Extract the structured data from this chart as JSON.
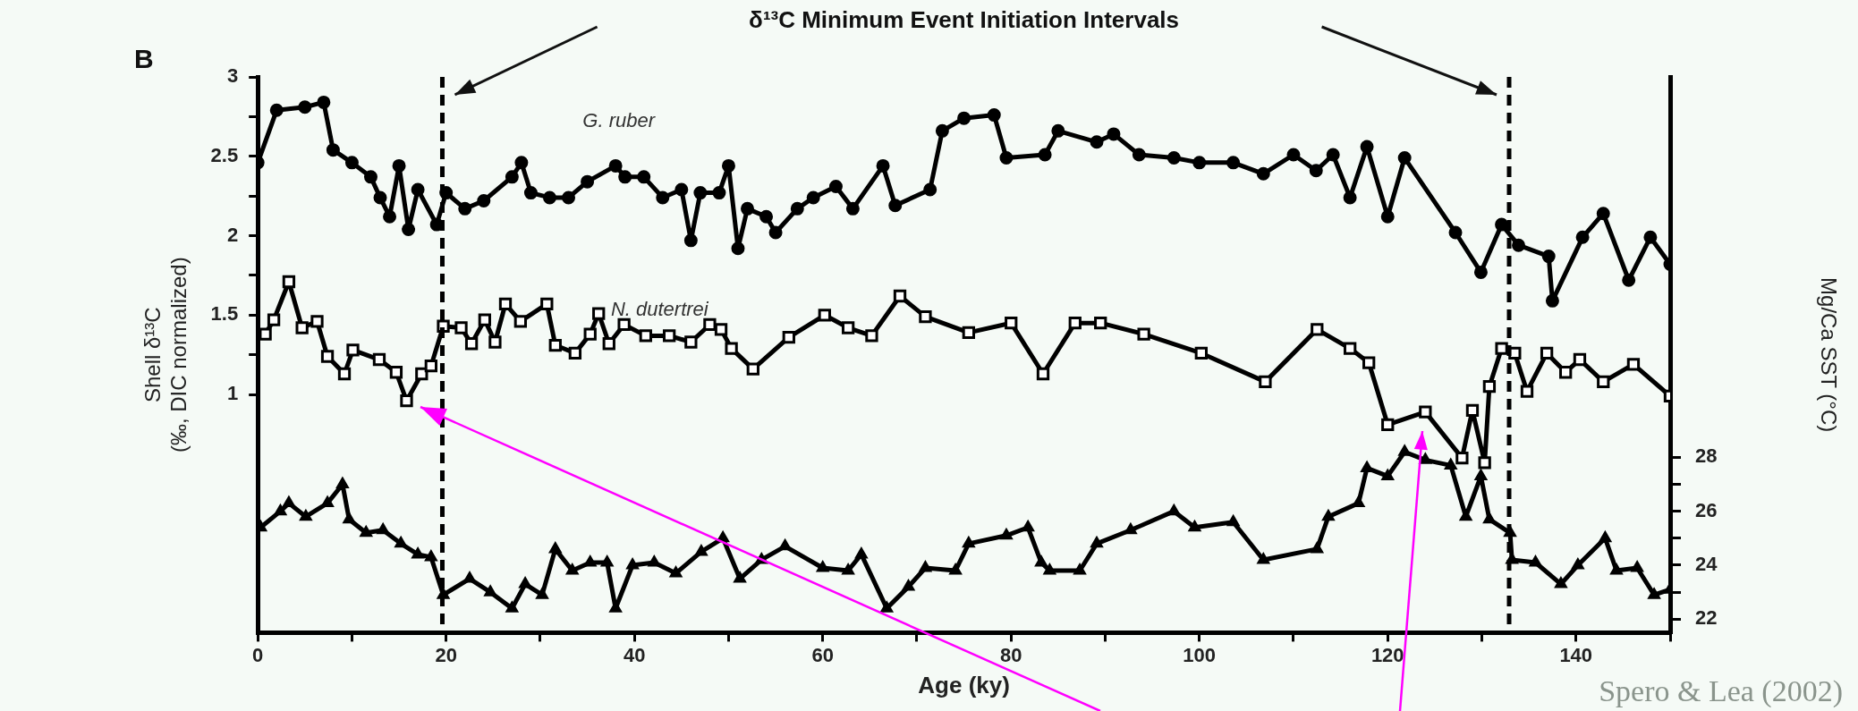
{
  "chart_data": {
    "type": "line",
    "title": "B",
    "xlabel": "Age (ky)",
    "ylabel": "Shell δ¹³C (‰, DIC normalized)",
    "y2label": "Mg/Ca SST (°C)",
    "annotations": [
      "δ¹³C Minimum Event Initiation Intervals",
      "Spero & Lea (2002)"
    ],
    "xlim": [
      0,
      150
    ],
    "xticks": [
      0,
      {
        "value": 10,
        "label": null
      },
      20,
      {
        "value": 30,
        "label": null
      },
      40,
      {
        "value": 50,
        "label": null
      },
      60,
      {
        "value": 70,
        "label": null
      },
      80,
      {
        "value": 90,
        "label": null
      },
      100,
      {
        "value": 110,
        "label": null
      },
      120,
      {
        "value": 130,
        "label": null
      },
      140,
      {
        "value": 150,
        "label": null
      }
    ],
    "ylim": [
      -0.5,
      3
    ],
    "yticks": [
      1,
      {
        "value": 1.25,
        "label": null
      },
      1.5,
      {
        "value": 1.75,
        "label": null
      },
      2,
      {
        "value": 2.25,
        "label": null
      },
      2.5,
      {
        "value": 2.75,
        "label": null
      },
      3
    ],
    "y2lim": [
      21.5,
      42.1
    ],
    "y2ticks": [
      22,
      {
        "value": 23,
        "label": null
      },
      24,
      {
        "value": 25,
        "label": null
      },
      26,
      {
        "value": 27,
        "label": null
      },
      28
    ],
    "grid": false,
    "legend": false,
    "line_style": "solid",
    "ref_lines": [
      {
        "axis": "x",
        "value": 19.6,
        "line_style": "dashed",
        "color": "#000000"
      },
      {
        "axis": "x",
        "value": 132.9,
        "line_style": "dashed",
        "color": "#000000"
      }
    ],
    "series": [
      {
        "name": "G. ruber",
        "color": "#000000",
        "marker": "circle",
        "x": [
          0,
          2,
          5,
          7,
          8,
          10,
          12,
          13,
          14,
          15,
          16,
          17,
          19,
          20,
          22,
          24,
          27,
          28,
          29,
          31,
          33,
          35,
          38,
          39,
          41,
          43,
          45,
          46,
          47,
          49,
          50,
          51,
          52,
          54,
          55,
          57.3,
          59,
          61.4,
          63.2,
          66.4,
          67.7,
          71.4,
          72.7,
          75,
          78.2,
          79.5,
          83.6,
          85,
          89.1,
          90.9,
          93.6,
          97.3,
          100,
          103.6,
          106.8,
          110,
          112.4,
          114.2,
          116,
          117.8,
          120,
          121.8,
          127.2,
          129.9,
          132.1,
          133.9,
          137.1,
          137.5,
          140.7,
          142.9,
          145.6,
          147.9,
          150
        ],
        "values": [
          2.46,
          2.79,
          2.81,
          2.84,
          2.54,
          2.46,
          2.37,
          2.24,
          2.12,
          2.44,
          2.04,
          2.29,
          2.07,
          2.27,
          2.17,
          2.22,
          2.37,
          2.46,
          2.27,
          2.24,
          2.24,
          2.34,
          2.44,
          2.37,
          2.37,
          2.24,
          2.29,
          1.97,
          2.27,
          2.27,
          2.44,
          1.92,
          2.17,
          2.12,
          2.02,
          2.17,
          2.24,
          2.31,
          2.17,
          2.44,
          2.19,
          2.29,
          2.66,
          2.74,
          2.76,
          2.49,
          2.51,
          2.66,
          2.59,
          2.64,
          2.51,
          2.49,
          2.46,
          2.46,
          2.39,
          2.51,
          2.41,
          2.51,
          2.24,
          2.56,
          2.12,
          2.49,
          2.02,
          1.77,
          2.07,
          1.94,
          1.87,
          1.59,
          1.99,
          2.14,
          1.72,
          1.99,
          1.82
        ]
      },
      {
        "name": "N. dutertrei",
        "color": "#000000",
        "marker": "square",
        "x": [
          0.8,
          1.7,
          3.3,
          4.7,
          6.3,
          7.4,
          9.2,
          10.1,
          12.9,
          14.7,
          15.8,
          17.4,
          18.4,
          19.7,
          21.6,
          22.7,
          24.1,
          25.2,
          26.3,
          27.9,
          30.7,
          31.6,
          33.7,
          35.3,
          36.2,
          37.3,
          38.9,
          41.2,
          43.7,
          46,
          48,
          49.2,
          50.3,
          52.6,
          56.4,
          60.2,
          62.7,
          65.2,
          68.2,
          70.9,
          75.5,
          80,
          83.4,
          86.8,
          89.5,
          94.1,
          100.2,
          107,
          112.5,
          116,
          118,
          120,
          124,
          127.9,
          129,
          130.3,
          130.8,
          132.1,
          133.5,
          134.8,
          136.9,
          138.9,
          140.4,
          142.9,
          146.1,
          150
        ],
        "values": [
          1.38,
          1.47,
          1.71,
          1.42,
          1.46,
          1.24,
          1.13,
          1.28,
          1.22,
          1.14,
          0.96,
          1.13,
          1.18,
          1.43,
          1.42,
          1.32,
          1.47,
          1.33,
          1.57,
          1.46,
          1.57,
          1.31,
          1.26,
          1.38,
          1.51,
          1.32,
          1.44,
          1.37,
          1.37,
          1.33,
          1.44,
          1.41,
          1.29,
          1.16,
          1.36,
          1.5,
          1.42,
          1.37,
          1.62,
          1.49,
          1.39,
          1.45,
          1.13,
          1.45,
          1.45,
          1.38,
          1.26,
          1.08,
          1.41,
          1.29,
          1.2,
          0.81,
          0.89,
          0.6,
          0.9,
          0.57,
          1.05,
          1.29,
          1.26,
          1.02,
          1.26,
          1.14,
          1.22,
          1.08,
          1.19,
          0.99
        ]
      },
      {
        "color": "#000000",
        "marker": "triangle",
        "axis": "y2",
        "x": [
          0.3,
          2.4,
          3.3,
          5.1,
          7.4,
          9,
          9.7,
          11.5,
          13.3,
          15.2,
          17,
          18.4,
          19.7,
          22.5,
          24.7,
          27,
          28.4,
          30.2,
          31.6,
          33.4,
          35.3,
          37.1,
          38,
          39.8,
          42.1,
          44.4,
          47.1,
          49.4,
          51.2,
          53.5,
          56,
          60,
          62.7,
          64.1,
          66.8,
          69.1,
          70.9,
          74.1,
          75.5,
          79.5,
          81.8,
          83.2,
          84.1,
          87.3,
          89.1,
          92.7,
          97.3,
          99.5,
          103.6,
          106.8,
          112.5,
          113.7,
          116.9,
          117.8,
          120,
          121.8,
          124,
          126.7,
          128.3,
          129.9,
          130.8,
          133,
          133.2,
          135.7,
          138.4,
          140.2,
          143.1,
          144.3,
          146.5,
          148.3,
          150
        ],
        "values": [
          25.4,
          26,
          26.3,
          25.8,
          26.3,
          27,
          25.7,
          25.2,
          25.3,
          24.8,
          24.4,
          24.3,
          22.9,
          23.5,
          23,
          22.4,
          23.3,
          22.9,
          24.6,
          23.8,
          24.1,
          24.1,
          22.4,
          24,
          24.1,
          23.7,
          24.5,
          25,
          23.5,
          24.2,
          24.7,
          23.9,
          23.8,
          24.4,
          22.4,
          23.2,
          23.9,
          23.8,
          24.8,
          25.1,
          25.4,
          24.1,
          23.8,
          23.8,
          24.8,
          25.3,
          26,
          25.4,
          25.6,
          24.2,
          24.6,
          25.8,
          26.3,
          27.6,
          27.3,
          28.2,
          27.9,
          27.7,
          25.8,
          27.3,
          25.7,
          25.2,
          24.2,
          24.1,
          23.3,
          24,
          25,
          23.8,
          23.9,
          22.9,
          23.1
        ]
      }
    ]
  }
}
